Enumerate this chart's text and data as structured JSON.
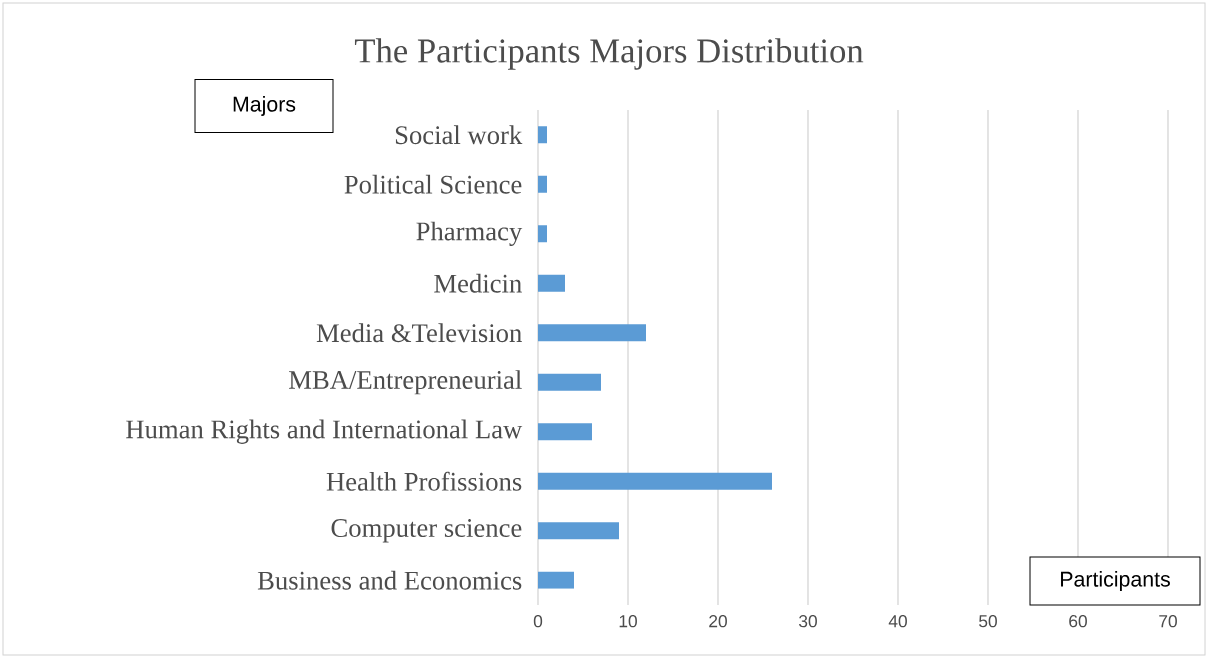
{
  "chart_data": {
    "type": "bar",
    "orientation": "horizontal",
    "title": "The Participants Majors Distribution",
    "xlabel": "Participants",
    "ylabel": "Majors",
    "categories": [
      "Social work",
      "Political Science",
      "Pharmacy",
      "Medicin",
      "Media &Television",
      "MBA/Entrepreneurial",
      "Human Rights and International Law",
      "Health Profissions",
      "Computer science",
      "Business and Economics"
    ],
    "values": [
      1,
      1,
      1,
      3,
      12,
      7,
      6,
      26,
      9,
      4
    ],
    "color": "#5b9bd5",
    "xlim": [
      0,
      70
    ],
    "xticks": [
      0,
      10,
      20,
      30,
      40,
      50,
      60,
      70
    ],
    "grid": "x"
  }
}
